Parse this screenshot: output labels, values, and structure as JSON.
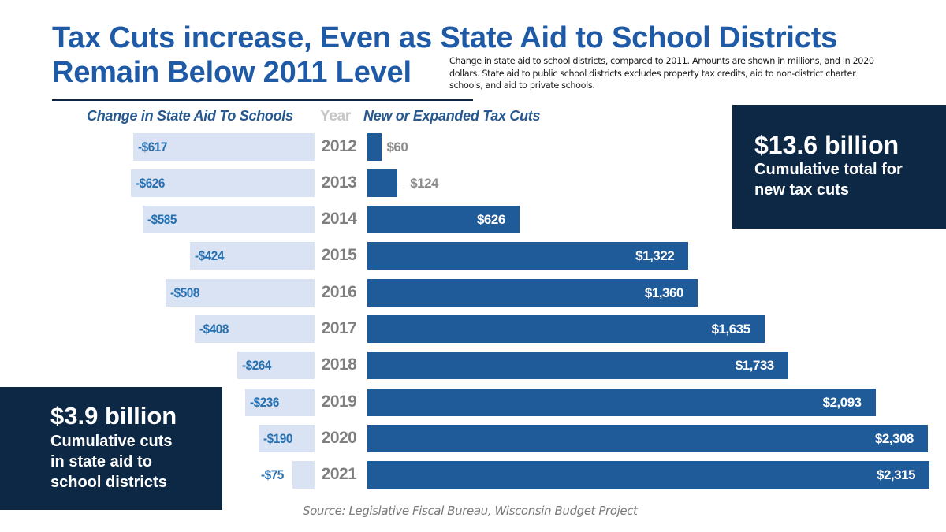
{
  "title_lines": [
    "Tax Cuts increase, Even as State Aid to School Districts",
    "Remain Below 2011 Level"
  ],
  "subtitle": "Change in state aid to school districts, compared to 2011. Amounts are shown in millions, and in 2020 dollars. State aid to public school districts excludes property tax credits, aid to non-district charter schools, and aid to private schools.",
  "column_headers": {
    "left": "Change in State Aid To Schools",
    "year": "Year",
    "right": "New or Expanded Tax Cuts"
  },
  "callouts": {
    "right": {
      "amount": "$13.6 billion",
      "line1": "Cumulative total for",
      "line2": "new tax cuts"
    },
    "left": {
      "amount": "$3.9 billion",
      "line1": "Cumulative cuts",
      "line2": "in state aid to",
      "line3": "school districts"
    }
  },
  "source": "Source: Legislative Fiscal Bureau, Wisconsin Budget Project",
  "colors": {
    "title": "#1f5aa6",
    "left_bar": "#dae3f3",
    "left_label": "#2770b0",
    "right_bar": "#1f5a99",
    "callout_bg": "#0d2845",
    "year_label": "#7f7f7f"
  },
  "chart_data": {
    "type": "bar",
    "orientation": "horizontal-diverging",
    "title": "Tax Cuts increase, Even as State Aid to School Districts Remain Below 2011 Level",
    "units": "millions of 2020 dollars",
    "categories": [
      "2012",
      "2013",
      "2014",
      "2015",
      "2016",
      "2017",
      "2018",
      "2019",
      "2020",
      "2021"
    ],
    "series": [
      {
        "name": "Change in State Aid To Schools",
        "values": [
          -617,
          -626,
          -585,
          -424,
          -508,
          -408,
          -264,
          -236,
          -190,
          -75
        ],
        "labels": [
          "-$617",
          "-$626",
          "-$585",
          "-$424",
          "-$508",
          "-$408",
          "-$264",
          "-$236",
          "-$190",
          "-$75"
        ]
      },
      {
        "name": "New or Expanded Tax Cuts",
        "values": [
          60,
          124,
          626,
          1322,
          1360,
          1635,
          1733,
          2093,
          2308,
          2315
        ],
        "labels": [
          "$60",
          "$124",
          "$626",
          "$1,322",
          "$1,360",
          "$1,635",
          "$1,733",
          "$2,093",
          "$2,308",
          "$2,315"
        ]
      }
    ],
    "xlabel": "",
    "ylabel": "Year",
    "grid": false,
    "legend": "column headers"
  }
}
